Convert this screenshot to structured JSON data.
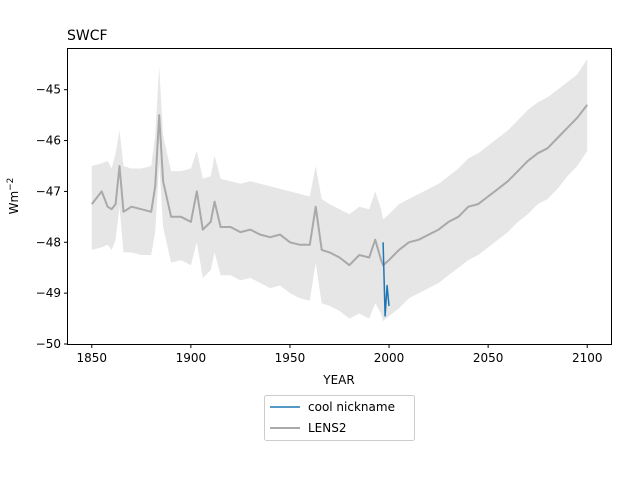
{
  "chart_data": {
    "type": "line",
    "title": "SWCF",
    "xlabel": "YEAR",
    "ylabel_base": "Wm",
    "ylabel_sup": "−2",
    "xlim": [
      1838,
      2112
    ],
    "ylim": [
      -50.0,
      -44.2
    ],
    "xticks": [
      1850,
      1900,
      1950,
      2000,
      2050,
      2100
    ],
    "xtick_labels": [
      "1850",
      "1900",
      "1950",
      "2000",
      "2050",
      "2100"
    ],
    "yticks": [
      -50,
      -49,
      -48,
      -47,
      -46,
      -45
    ],
    "ytick_labels": [
      "−50",
      "−49",
      "−48",
      "−47",
      "−46",
      "−45"
    ],
    "legend_position": "below-center",
    "series": [
      {
        "name": "cool nickname",
        "color": "#1f77b4",
        "x": [
          1997,
          1998,
          1999,
          2000
        ],
        "y": [
          -48.0,
          -49.45,
          -48.85,
          -49.25
        ]
      },
      {
        "name": "LENS2",
        "color": "#a9a9a9",
        "band_color": "#e6e6e6",
        "x": [
          1850,
          1855,
          1858,
          1860,
          1862,
          1864,
          1866,
          1870,
          1875,
          1880,
          1882,
          1884,
          1886,
          1890,
          1895,
          1900,
          1903,
          1906,
          1910,
          1912,
          1915,
          1920,
          1925,
          1930,
          1935,
          1940,
          1945,
          1950,
          1955,
          1960,
          1963,
          1966,
          1970,
          1975,
          1980,
          1985,
          1990,
          1993,
          1996,
          1997,
          2000,
          2005,
          2010,
          2015,
          2020,
          2025,
          2030,
          2035,
          2040,
          2045,
          2050,
          2055,
          2060,
          2065,
          2070,
          2075,
          2080,
          2085,
          2090,
          2095,
          2100
        ],
        "y": [
          -47.25,
          -47.0,
          -47.3,
          -47.35,
          -47.25,
          -46.5,
          -47.4,
          -47.3,
          -47.35,
          -47.4,
          -46.9,
          -45.5,
          -46.8,
          -47.5,
          -47.5,
          -47.6,
          -47.0,
          -47.75,
          -47.6,
          -47.2,
          -47.7,
          -47.7,
          -47.8,
          -47.75,
          -47.85,
          -47.9,
          -47.85,
          -48.0,
          -48.05,
          -48.05,
          -47.3,
          -48.15,
          -48.2,
          -48.3,
          -48.45,
          -48.25,
          -48.3,
          -47.95,
          -48.35,
          -48.45,
          -48.35,
          -48.15,
          -48.0,
          -47.95,
          -47.85,
          -47.75,
          -47.6,
          -47.5,
          -47.3,
          -47.25,
          -47.1,
          -46.95,
          -46.8,
          -46.6,
          -46.4,
          -46.25,
          -46.15,
          -45.95,
          -45.75,
          -45.55,
          -45.3
        ],
        "upper": [
          -46.5,
          -46.45,
          -46.4,
          -46.55,
          -46.25,
          -45.8,
          -46.5,
          -46.55,
          -46.55,
          -46.5,
          -45.9,
          -44.55,
          -45.9,
          -46.6,
          -46.6,
          -46.55,
          -46.2,
          -46.75,
          -46.7,
          -46.3,
          -46.75,
          -46.8,
          -46.85,
          -46.8,
          -46.85,
          -46.9,
          -46.95,
          -47.0,
          -47.05,
          -47.1,
          -46.5,
          -47.15,
          -47.25,
          -47.35,
          -47.45,
          -47.3,
          -47.35,
          -47.0,
          -47.35,
          -47.55,
          -47.45,
          -47.25,
          -47.15,
          -47.05,
          -46.95,
          -46.85,
          -46.7,
          -46.55,
          -46.35,
          -46.25,
          -46.1,
          -45.95,
          -45.8,
          -45.6,
          -45.4,
          -45.25,
          -45.15,
          -45.0,
          -44.85,
          -44.7,
          -44.4
        ],
        "lower": [
          -48.15,
          -48.1,
          -48.05,
          -48.15,
          -47.95,
          -47.3,
          -48.2,
          -48.2,
          -48.25,
          -48.25,
          -47.8,
          -46.45,
          -47.7,
          -48.4,
          -48.35,
          -48.45,
          -48.0,
          -48.7,
          -48.55,
          -48.2,
          -48.65,
          -48.65,
          -48.75,
          -48.7,
          -48.8,
          -48.9,
          -48.85,
          -49.0,
          -49.1,
          -49.15,
          -48.4,
          -49.2,
          -49.25,
          -49.35,
          -49.5,
          -49.4,
          -49.5,
          -49.2,
          -49.4,
          -49.55,
          -49.45,
          -49.3,
          -49.1,
          -49.0,
          -48.9,
          -48.8,
          -48.65,
          -48.5,
          -48.35,
          -48.25,
          -48.1,
          -47.95,
          -47.8,
          -47.6,
          -47.45,
          -47.25,
          -47.15,
          -46.95,
          -46.7,
          -46.5,
          -46.2
        ]
      }
    ]
  }
}
